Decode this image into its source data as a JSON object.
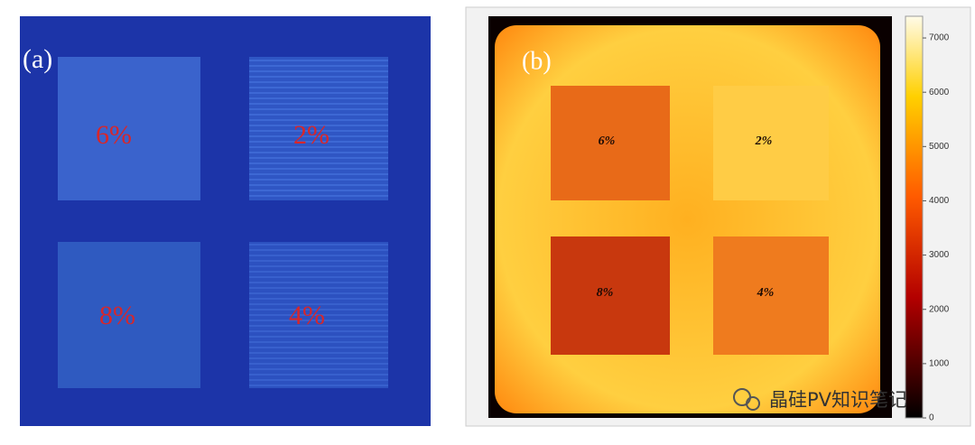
{
  "panel_a": {
    "label": "(a)",
    "regions": [
      "6%",
      "2%",
      "8%",
      "4%"
    ]
  },
  "panel_b": {
    "label": "(b)",
    "regions": [
      "6%",
      "2%",
      "8%",
      "4%"
    ],
    "colorbar": {
      "lim": [
        0,
        7400
      ],
      "ticks": [
        0,
        1000,
        2000,
        3000,
        4000,
        5000,
        6000,
        7000
      ]
    }
  },
  "watermark": "晶硅PV知识笔记"
}
